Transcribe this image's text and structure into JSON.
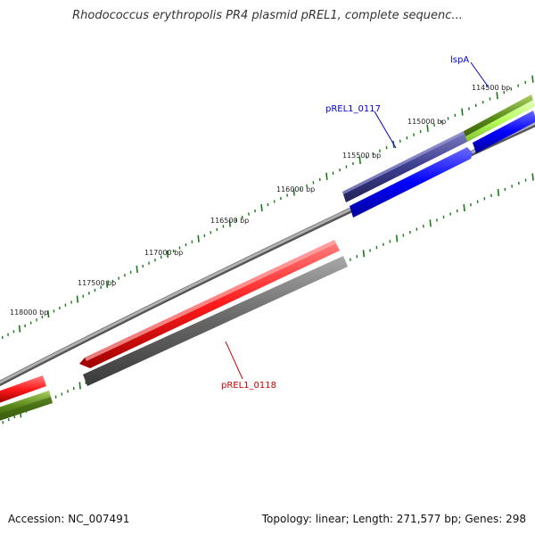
{
  "title": "Rhodococcus erythropolis PR4 plasmid pREL1, complete sequenc...",
  "footer": {
    "accession": "Accession: NC_007491",
    "stats": "Topology: linear; Length: 271,577 bp; Genes: 298"
  },
  "colors": {
    "tick": "#1a7a1a",
    "backbone": "#8a8a8a",
    "label_blue": "#0000cc",
    "label_red": "#cc0000",
    "gene_red": "#ff1a1a",
    "gene_gray": "#666666",
    "gene_blue": "#0000ff",
    "gene_navy": "#3d3d8f",
    "gene_olive": "#5a8a1a",
    "gene_lime": "#b6ff5a"
  },
  "ticks": [
    {
      "label": "114500 bp"
    },
    {
      "label": "115000 bp"
    },
    {
      "label": "115500 bp"
    },
    {
      "label": "116000 bp"
    },
    {
      "label": "116500 bp"
    },
    {
      "label": "117000 bp"
    },
    {
      "label": "117500 bp"
    },
    {
      "label": "118000 bp"
    }
  ],
  "genes": [
    {
      "name": "lspA",
      "color": "#0000cc"
    },
    {
      "name": "pREL1_0117",
      "color": "#0000cc"
    },
    {
      "name": "pREL1_0118",
      "color": "#cc0000"
    }
  ]
}
